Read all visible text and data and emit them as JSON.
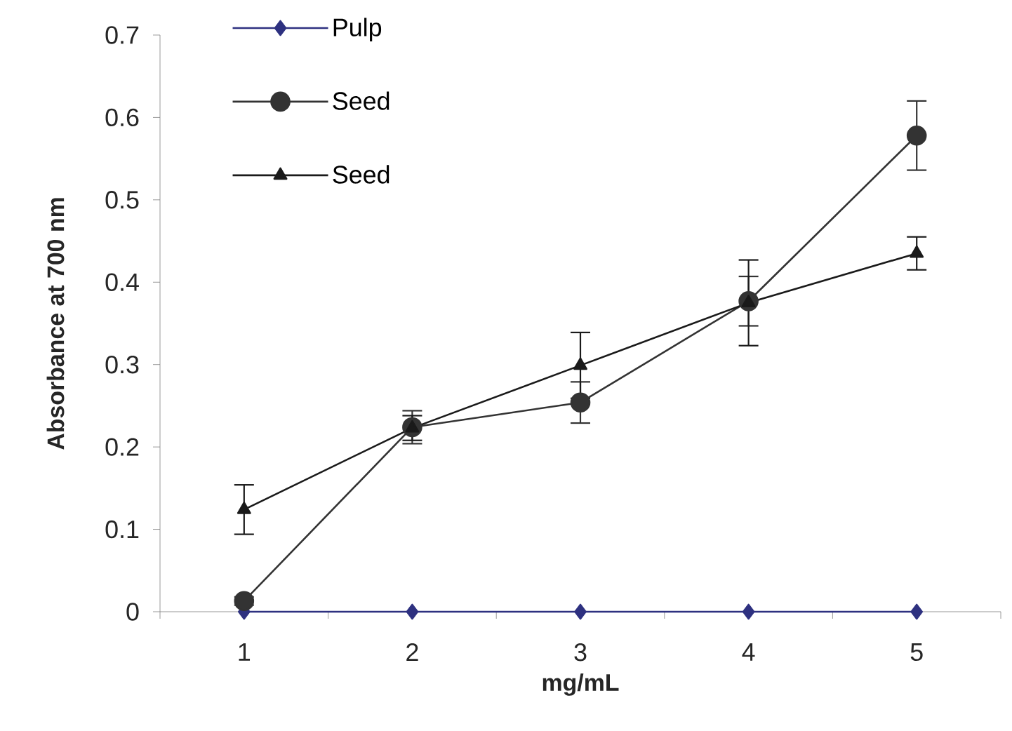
{
  "chart_data": {
    "type": "line",
    "xlabel": "mg/mL",
    "ylabel": "Absorbance at 700 nm",
    "categories": [
      "1",
      "2",
      "3",
      "4",
      "5"
    ],
    "ylim": [
      0,
      0.7
    ],
    "yticks": [
      0,
      0.1,
      0.2,
      0.3,
      0.4,
      0.5,
      0.6,
      0.7
    ],
    "legend": "top left",
    "series": [
      {
        "name": "Pulp",
        "color": "#2e3180",
        "marker": "diamond",
        "values": [
          0,
          0,
          0,
          0,
          0
        ]
      },
      {
        "name": "Seed",
        "color": "#333333",
        "marker": "circle",
        "values": [
          0.013,
          0.224,
          0.254,
          0.377,
          0.578
        ],
        "errors": [
          0.005,
          0.02,
          0.025,
          0.03,
          0.042
        ]
      },
      {
        "name": "Seed",
        "color": "#1a1a1a",
        "marker": "triangle",
        "values": [
          0.124,
          0.223,
          0.299,
          0.375,
          0.435
        ],
        "errors": [
          0.03,
          0.015,
          0.04,
          0.052,
          0.02
        ]
      }
    ]
  }
}
